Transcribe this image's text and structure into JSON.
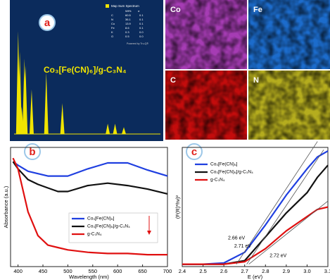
{
  "panel_labels": [
    "a",
    "b",
    "c"
  ],
  "maps": [
    {
      "label": "Co",
      "color": "#a63cb4"
    },
    {
      "label": "Fe",
      "color": "#1c6ccc"
    },
    {
      "label": "C",
      "color": "#c40c0c"
    },
    {
      "label": "N",
      "color": "#b5ad1e"
    }
  ],
  "eds_table": {
    "title": "Map Sum Spectrum",
    "columns": [
      "Wt%",
      "σ"
    ],
    "rows": [
      [
        "C",
        "60.5",
        "0.1"
      ],
      [
        "N",
        "36.1",
        "0.1"
      ],
      [
        "Co",
        "13.9",
        "0.1"
      ],
      [
        "Fe",
        "8.6",
        "0.1"
      ],
      [
        "K",
        "0.3",
        "0.0"
      ],
      [
        "O",
        "0.5",
        "0.0"
      ]
    ],
    "footer": "Powered by Tru-Q®"
  },
  "chart_data": [
    {
      "type": "spectrum",
      "title": "Co₃[Fe(CN)₆]/g-C₃N₄",
      "color": "#f0e400",
      "x": [
        0.28,
        0.39,
        0.52,
        0.71,
        0.78,
        1.2,
        2.2,
        3.3,
        6.4,
        6.9,
        7.5
      ],
      "values": [
        30,
        24,
        8,
        22,
        20,
        13,
        18,
        9,
        3,
        3,
        2
      ],
      "xlim": [
        0,
        10
      ],
      "ylim": [
        0,
        35
      ]
    },
    {
      "type": "line",
      "y_label": "Absorbance (a.u.)",
      "x_label": "Wavelength (nm)",
      "x": [
        390,
        400,
        420,
        440,
        460,
        480,
        500,
        540,
        580,
        620,
        660,
        700
      ],
      "series": [
        {
          "name": "Co₃[Fe(CN)₆]",
          "color": "#1f3fe0",
          "values": [
            0.88,
            0.85,
            0.8,
            0.78,
            0.76,
            0.76,
            0.76,
            0.82,
            0.87,
            0.87,
            0.81,
            0.76
          ]
        },
        {
          "name": "Co₃[Fe(CN)₆]/g-C₃N₄",
          "color": "#111111",
          "values": [
            0.88,
            0.82,
            0.73,
            0.69,
            0.66,
            0.63,
            0.63,
            0.68,
            0.7,
            0.68,
            0.65,
            0.61
          ]
        },
        {
          "name": "g-C₃N₄",
          "color": "#e01010",
          "values": [
            0.91,
            0.82,
            0.46,
            0.26,
            0.18,
            0.16,
            0.14,
            0.12,
            0.11,
            0.11,
            0.1,
            0.1
          ]
        }
      ],
      "xlim": [
        385,
        700
      ],
      "ylim": [
        0,
        1
      ],
      "xticks": [
        400,
        450,
        500,
        550,
        600,
        650,
        700
      ]
    },
    {
      "type": "line",
      "y_label": "(F(R)*hν)²",
      "x_label": "E (eV)",
      "x": [
        2.4,
        2.5,
        2.6,
        2.7,
        2.8,
        2.9,
        3.0,
        3.05,
        3.1
      ],
      "series": [
        {
          "name": "Co₃[Fe(CN)₆]",
          "color": "#1f3fe0",
          "values": [
            0.02,
            0.02,
            0.03,
            0.12,
            0.35,
            0.6,
            0.82,
            0.92,
            0.97
          ]
        },
        {
          "name": "Co₃[Fe(CN)₆]/g-C₃N₄",
          "color": "#111111",
          "values": [
            0.02,
            0.02,
            0.02,
            0.05,
            0.25,
            0.45,
            0.62,
            0.75,
            0.85
          ]
        },
        {
          "name": "g-C₃N₄",
          "color": "#e01010",
          "values": [
            0.02,
            0.02,
            0.02,
            0.04,
            0.15,
            0.3,
            0.42,
            0.48,
            0.5
          ]
        }
      ],
      "annotations": [
        "2.66 eV",
        "2.71 eV",
        "2.72 eV"
      ],
      "xlim": [
        2.4,
        3.1
      ],
      "ylim": [
        0,
        1
      ],
      "xticks": [
        2.4,
        2.5,
        2.6,
        2.7,
        2.8,
        2.9,
        {
          "value": 3,
          "label": "3.0"
        },
        3.1
      ]
    }
  ]
}
